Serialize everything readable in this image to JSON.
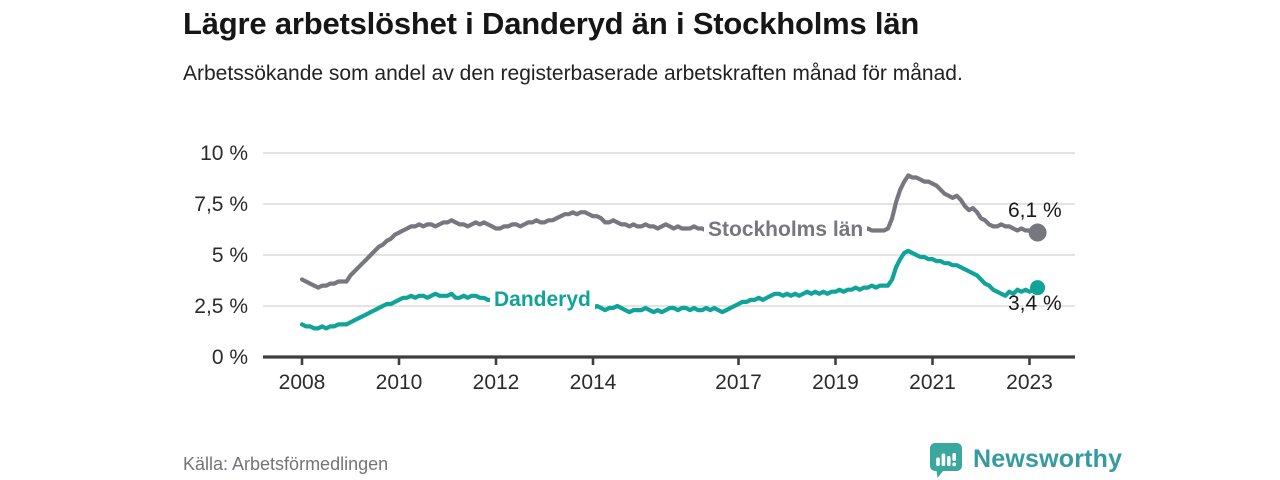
{
  "header": {
    "title": "Lägre arbetslöshet i Danderyd än i Stockholms län",
    "subtitle": "Arbetssökande som andel av den registerbaserade arbetskraften månad för månad."
  },
  "footer": {
    "source": "Källa: Arbetsförmedlingen",
    "brand": "Newsworthy",
    "brand_icon": "bar-chart-speech-bubble-icon"
  },
  "colors": {
    "stockholm_line": "#77777F",
    "danderyd_line": "#10A39A",
    "gridline": "#dcdcdc",
    "axis": "#3f3f3f",
    "logo_teal": "#3BA8A0",
    "logo_text_teal": "#359BA1"
  },
  "chart_data": {
    "type": "line",
    "title": "Lägre arbetslöshet i Danderyd än i Stockholms län",
    "subtitle": "Arbetssökande som andel av den registerbaserade arbetskraften månad för månad.",
    "x_unit": "month",
    "x_start": "2008-01",
    "x_end": "2023-03",
    "x_tick_years": [
      2008,
      2010,
      2012,
      2014,
      2017,
      2019,
      2021,
      2023
    ],
    "y_ticks": [
      {
        "value": 0,
        "label": "0 %"
      },
      {
        "value": 2.5,
        "label": "2,5 %"
      },
      {
        "value": 5,
        "label": "5 %"
      },
      {
        "value": 7.5,
        "label": "7,5 %"
      },
      {
        "value": 10,
        "label": "10 %"
      }
    ],
    "ylim": [
      0,
      10
    ],
    "grid": true,
    "legend_position": "inline",
    "series": [
      {
        "name": "Stockholms län",
        "color": "#77777F",
        "end_value": 6.1,
        "end_value_label": "6,1 %",
        "values": [
          3.8,
          3.7,
          3.6,
          3.5,
          3.4,
          3.5,
          3.5,
          3.6,
          3.6,
          3.7,
          3.7,
          3.7,
          4.0,
          4.2,
          4.4,
          4.6,
          4.8,
          5.0,
          5.2,
          5.4,
          5.5,
          5.7,
          5.8,
          6.0,
          6.1,
          6.2,
          6.3,
          6.4,
          6.4,
          6.5,
          6.4,
          6.5,
          6.5,
          6.4,
          6.5,
          6.6,
          6.6,
          6.7,
          6.6,
          6.5,
          6.5,
          6.4,
          6.5,
          6.6,
          6.5,
          6.6,
          6.5,
          6.4,
          6.3,
          6.3,
          6.4,
          6.4,
          6.5,
          6.5,
          6.4,
          6.5,
          6.6,
          6.6,
          6.7,
          6.6,
          6.6,
          6.7,
          6.7,
          6.8,
          6.9,
          7.0,
          7.0,
          7.1,
          7.0,
          7.1,
          7.1,
          7.0,
          6.9,
          6.9,
          6.8,
          6.6,
          6.6,
          6.7,
          6.6,
          6.5,
          6.5,
          6.4,
          6.5,
          6.4,
          6.4,
          6.5,
          6.4,
          6.4,
          6.3,
          6.4,
          6.5,
          6.4,
          6.3,
          6.4,
          6.3,
          6.3,
          6.3,
          6.4,
          6.3,
          6.3,
          6.2,
          6.3,
          6.2,
          6.2,
          6.1,
          6.2,
          6.1,
          6.2,
          6.1,
          6.2,
          6.1,
          6.1,
          6.0,
          6.1,
          6.1,
          6.0,
          6.1,
          6.1,
          6.0,
          6.1,
          6.1,
          6.0,
          6.0,
          6.1,
          6.0,
          6.0,
          6.1,
          6.0,
          6.1,
          6.1,
          6.2,
          6.1,
          6.1,
          6.2,
          6.1,
          6.2,
          6.2,
          6.1,
          6.2,
          6.2,
          6.3,
          6.2,
          6.2,
          6.2,
          6.2,
          6.3,
          6.8,
          7.6,
          8.2,
          8.6,
          8.9,
          8.8,
          8.8,
          8.7,
          8.6,
          8.6,
          8.5,
          8.4,
          8.2,
          8.0,
          7.9,
          7.8,
          7.9,
          7.7,
          7.4,
          7.2,
          7.3,
          7.1,
          6.8,
          6.7,
          6.5,
          6.4,
          6.4,
          6.5,
          6.4,
          6.4,
          6.3,
          6.2,
          6.3,
          6.2,
          6.2,
          6.1,
          6.1
        ]
      },
      {
        "name": "Danderyd",
        "color": "#10A39A",
        "end_value": 3.4,
        "end_value_label": "3,4 %",
        "values": [
          1.6,
          1.5,
          1.5,
          1.4,
          1.4,
          1.5,
          1.4,
          1.5,
          1.5,
          1.6,
          1.6,
          1.6,
          1.7,
          1.8,
          1.9,
          2.0,
          2.1,
          2.2,
          2.3,
          2.4,
          2.5,
          2.6,
          2.6,
          2.7,
          2.8,
          2.9,
          2.9,
          3.0,
          2.9,
          3.0,
          3.0,
          2.9,
          3.0,
          3.1,
          3.0,
          3.0,
          3.0,
          3.1,
          2.9,
          2.9,
          3.0,
          2.9,
          3.0,
          3.0,
          2.9,
          2.9,
          2.8,
          2.8,
          2.5,
          2.4,
          2.5,
          2.4,
          2.5,
          2.5,
          2.6,
          2.6,
          2.5,
          2.6,
          2.6,
          2.5,
          2.5,
          2.6,
          2.5,
          2.6,
          2.6,
          2.7,
          2.6,
          2.6,
          2.5,
          2.5,
          2.4,
          2.5,
          2.4,
          2.5,
          2.4,
          2.3,
          2.4,
          2.4,
          2.5,
          2.4,
          2.3,
          2.2,
          2.3,
          2.3,
          2.3,
          2.4,
          2.3,
          2.2,
          2.3,
          2.2,
          2.3,
          2.4,
          2.4,
          2.3,
          2.4,
          2.4,
          2.3,
          2.4,
          2.3,
          2.3,
          2.4,
          2.3,
          2.4,
          2.3,
          2.2,
          2.3,
          2.4,
          2.5,
          2.6,
          2.7,
          2.7,
          2.8,
          2.8,
          2.9,
          2.8,
          2.9,
          3.0,
          3.1,
          3.1,
          3.0,
          3.1,
          3.0,
          3.1,
          3.0,
          3.1,
          3.2,
          3.1,
          3.2,
          3.1,
          3.2,
          3.1,
          3.2,
          3.2,
          3.3,
          3.2,
          3.3,
          3.3,
          3.4,
          3.3,
          3.4,
          3.4,
          3.5,
          3.4,
          3.5,
          3.5,
          3.5,
          3.8,
          4.4,
          4.8,
          5.1,
          5.2,
          5.1,
          5.0,
          4.9,
          4.9,
          4.8,
          4.8,
          4.7,
          4.7,
          4.6,
          4.6,
          4.5,
          4.5,
          4.4,
          4.3,
          4.2,
          4.1,
          4.0,
          3.8,
          3.6,
          3.5,
          3.3,
          3.2,
          3.1,
          3.0,
          3.2,
          3.1,
          3.3,
          3.2,
          3.3,
          3.2,
          3.3,
          3.4
        ]
      }
    ]
  }
}
